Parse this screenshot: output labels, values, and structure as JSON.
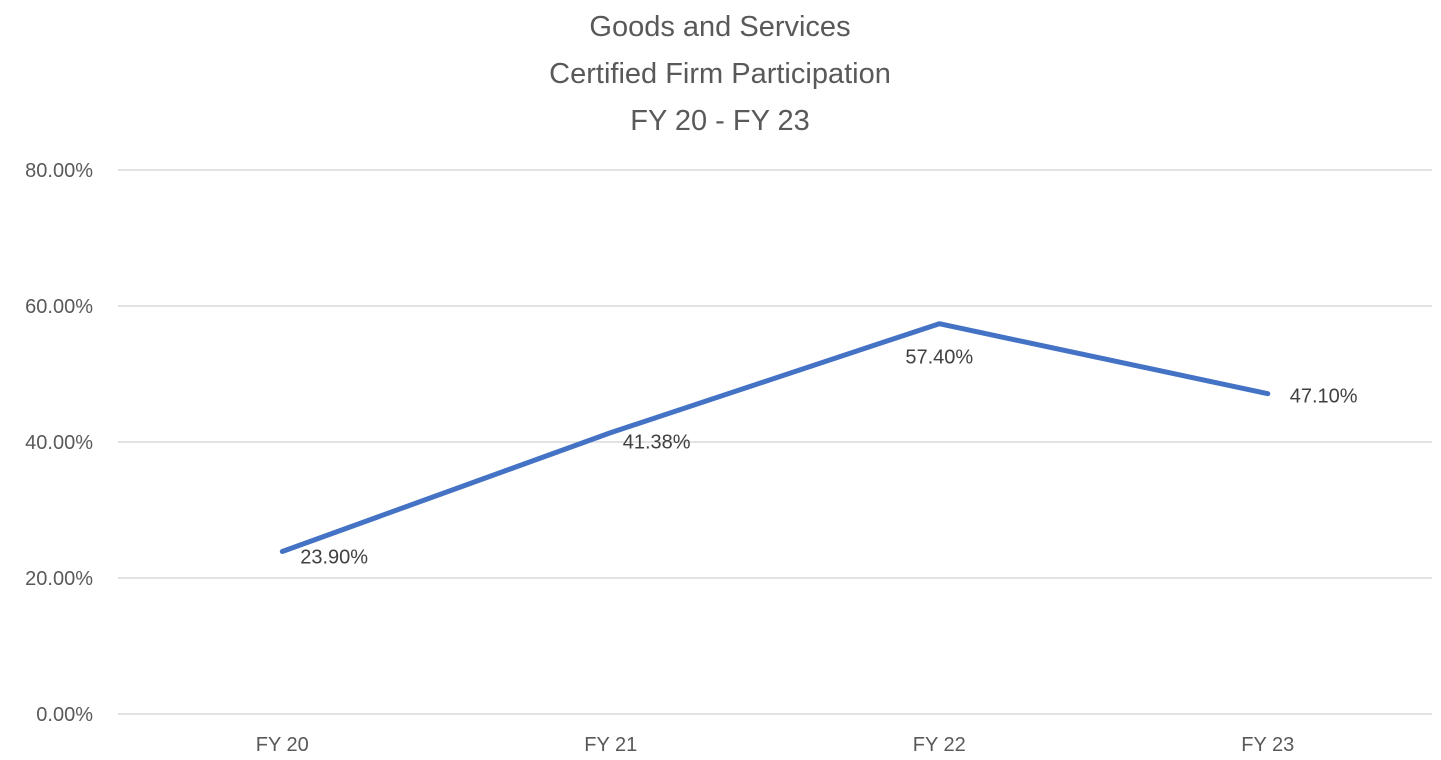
{
  "chart_data": {
    "type": "line",
    "title_lines": [
      "Goods and Services",
      "Certified Firm Participation",
      "FY 20 - FY 23"
    ],
    "categories": [
      "FY 20",
      "FY 21",
      "FY 22",
      "FY 23"
    ],
    "series": [
      {
        "values": [
          23.9,
          41.38,
          57.4,
          47.1
        ],
        "data_labels": [
          "23.90%",
          "41.38%",
          "57.40%",
          "47.10%"
        ],
        "color": "#4472c4"
      }
    ],
    "ylim": [
      0,
      80
    ],
    "y_ticks": [
      0,
      20,
      40,
      60,
      80
    ],
    "y_tick_labels": [
      "0.00%",
      "20.00%",
      "40.00%",
      "60.00%",
      "80.00%"
    ],
    "grid": true,
    "legend": "none",
    "colors": {
      "gridline": "#d9d9d9",
      "text": "#595959",
      "label_text": "#404040"
    }
  }
}
